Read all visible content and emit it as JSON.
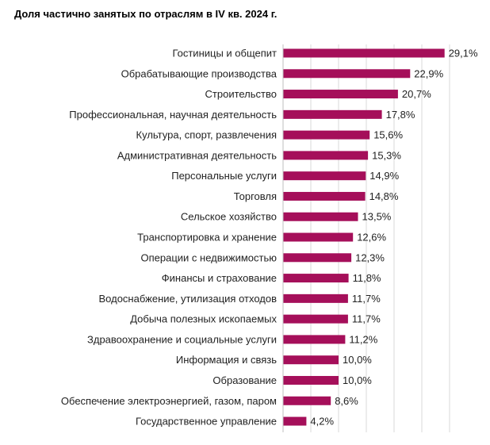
{
  "chart_data": {
    "type": "bar",
    "orientation": "horizontal",
    "title": "Доля частично занятых по отраслям в IV кв. 2024 г.",
    "categories": [
      "Гостиницы и общепит",
      "Обрабатывающие производства",
      "Строительство",
      "Профессиональная, научная деятельность",
      "Культура, спорт, развлечения",
      "Административная деятельность",
      "Персональные услуги",
      "Торговля",
      "Сельское хозяйство",
      "Транспортировка и хранение",
      "Операции с недвижимостью",
      "Финансы и страхование",
      "Водоснабжение, утилизация отходов",
      "Добыча полезных ископаемых",
      "Здравоохранение и социальные услуги",
      "Информация и связь",
      "Образование",
      "Обеспечение электроэнергией, газом, паром",
      "Государственное управление"
    ],
    "values": [
      29.1,
      22.9,
      20.7,
      17.8,
      15.6,
      15.3,
      14.9,
      14.8,
      13.5,
      12.6,
      12.3,
      11.8,
      11.7,
      11.7,
      11.2,
      10.0,
      10.0,
      8.6,
      4.2
    ],
    "value_labels": [
      "29,1%",
      "22,9%",
      "20,7%",
      "17,8%",
      "15,6%",
      "15,3%",
      "14,9%",
      "14,8%",
      "13,5%",
      "12,6%",
      "12,3%",
      "11,8%",
      "11,7%",
      "11,7%",
      "11,2%",
      "10,0%",
      "10,0%",
      "8,6%",
      "4,2%"
    ],
    "xlim": [
      0,
      30
    ],
    "grid": "vertical, every 5",
    "bar_color": "#a50f5a",
    "grid_color": "#d9d9d9"
  }
}
